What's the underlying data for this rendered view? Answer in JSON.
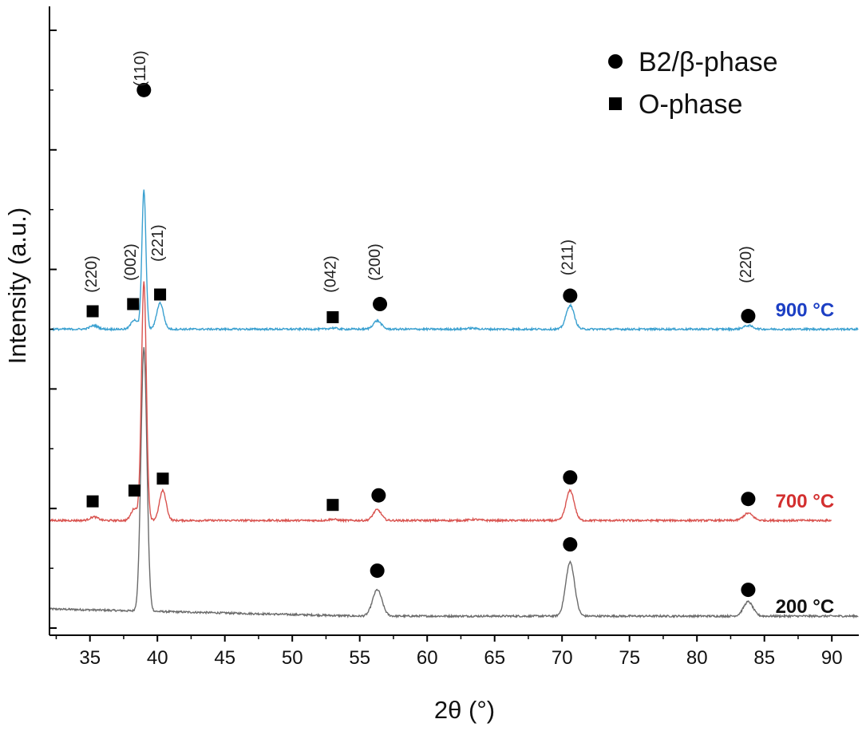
{
  "chart_data": {
    "type": "line",
    "xlabel": "2θ (°)",
    "ylabel": "Intensity (a.u.)",
    "xlim": [
      32,
      92
    ],
    "x_ticks": [
      35,
      40,
      45,
      50,
      55,
      60,
      65,
      70,
      75,
      80,
      85,
      90
    ],
    "y_ticks_labeled": false,
    "grid": false,
    "legend": {
      "placement": "top-right",
      "entries": [
        {
          "marker": "circle",
          "label": "B2/β-phase"
        },
        {
          "marker": "square",
          "label": "O-phase"
        }
      ]
    },
    "series": [
      {
        "name": "200 °C",
        "color": "#6b6b6b",
        "label_color": "#111111",
        "baseline": 0.05,
        "label_x": 88,
        "peaks": [
          {
            "x": 39.0,
            "height": 1.1,
            "width": 0.22
          },
          {
            "x": 56.3,
            "height": 0.11,
            "width": 0.35
          },
          {
            "x": 70.6,
            "height": 0.225,
            "width": 0.33
          },
          {
            "x": 83.8,
            "height": 0.06,
            "width": 0.35
          }
        ],
        "markers": [
          {
            "x": 56.3,
            "y": 0.24,
            "shape": "circle"
          },
          {
            "x": 70.6,
            "y": 0.35,
            "shape": "circle"
          },
          {
            "x": 83.8,
            "y": 0.16,
            "shape": "circle"
          }
        ]
      },
      {
        "name": "700 °C",
        "color": "#d9534f",
        "label_color": "#d32f2f",
        "baseline": 0.45,
        "label_x": 88,
        "peaks": [
          {
            "x": 35.3,
            "height": 0.015,
            "width": 0.3
          },
          {
            "x": 38.3,
            "height": 0.05,
            "width": 0.25
          },
          {
            "x": 39.0,
            "height": 1.0,
            "width": 0.18
          },
          {
            "x": 40.4,
            "height": 0.125,
            "width": 0.25
          },
          {
            "x": 53.0,
            "height": 0.005,
            "width": 0.3
          },
          {
            "x": 56.3,
            "height": 0.045,
            "width": 0.3
          },
          {
            "x": 63.5,
            "height": 0.004,
            "width": 0.4
          },
          {
            "x": 70.6,
            "height": 0.125,
            "width": 0.3
          },
          {
            "x": 83.8,
            "height": 0.03,
            "width": 0.35
          }
        ],
        "markers": [
          {
            "x": 35.2,
            "y": 0.53,
            "shape": "square"
          },
          {
            "x": 38.3,
            "y": 0.575,
            "shape": "square"
          },
          {
            "x": 40.4,
            "y": 0.625,
            "shape": "square"
          },
          {
            "x": 53.0,
            "y": 0.515,
            "shape": "square"
          },
          {
            "x": 56.4,
            "y": 0.555,
            "shape": "circle"
          },
          {
            "x": 70.6,
            "y": 0.63,
            "shape": "circle"
          },
          {
            "x": 83.8,
            "y": 0.54,
            "shape": "circle"
          }
        ]
      },
      {
        "name": "900 °C",
        "color": "#3aa0d0",
        "label_color": "#1c3fc4",
        "baseline": 1.25,
        "label_x": 88,
        "peaks": [
          {
            "x": 35.3,
            "height": 0.015,
            "width": 0.3
          },
          {
            "x": 38.3,
            "height": 0.04,
            "width": 0.25
          },
          {
            "x": 39.0,
            "height": 0.58,
            "width": 0.15
          },
          {
            "x": 40.2,
            "height": 0.11,
            "width": 0.25
          },
          {
            "x": 53.0,
            "height": 0.005,
            "width": 0.3
          },
          {
            "x": 56.3,
            "height": 0.035,
            "width": 0.3
          },
          {
            "x": 63.3,
            "height": 0.004,
            "width": 0.4
          },
          {
            "x": 70.6,
            "height": 0.1,
            "width": 0.3
          },
          {
            "x": 83.8,
            "height": 0.015,
            "width": 0.35
          }
        ],
        "markers": [
          {
            "x": 35.2,
            "y": 1.325,
            "shape": "square"
          },
          {
            "x": 38.2,
            "y": 1.355,
            "shape": "square"
          },
          {
            "x": 40.2,
            "y": 1.395,
            "shape": "square"
          },
          {
            "x": 53.0,
            "y": 1.3,
            "shape": "square"
          },
          {
            "x": 56.5,
            "y": 1.355,
            "shape": "circle"
          },
          {
            "x": 70.6,
            "y": 1.39,
            "shape": "circle"
          },
          {
            "x": 83.8,
            "y": 1.305,
            "shape": "circle"
          }
        ]
      }
    ],
    "top_marker": {
      "x": 39.0,
      "y": 2.25,
      "shape": "circle"
    },
    "peak_labels": [
      {
        "x": 35.5,
        "y": 1.48,
        "text": "(220)"
      },
      {
        "x": 38.4,
        "y": 1.53,
        "text": "(002)"
      },
      {
        "x": 40.4,
        "y": 1.61,
        "text": "(221)"
      },
      {
        "x": 53.2,
        "y": 1.48,
        "text": "(042)"
      },
      {
        "x": 56.5,
        "y": 1.53,
        "text": "(200)"
      },
      {
        "x": 70.8,
        "y": 1.55,
        "text": "(211)"
      },
      {
        "x": 84.0,
        "y": 1.52,
        "text": "(220)"
      },
      {
        "x": 39.1,
        "y": 2.34,
        "text": "(110)"
      }
    ]
  }
}
